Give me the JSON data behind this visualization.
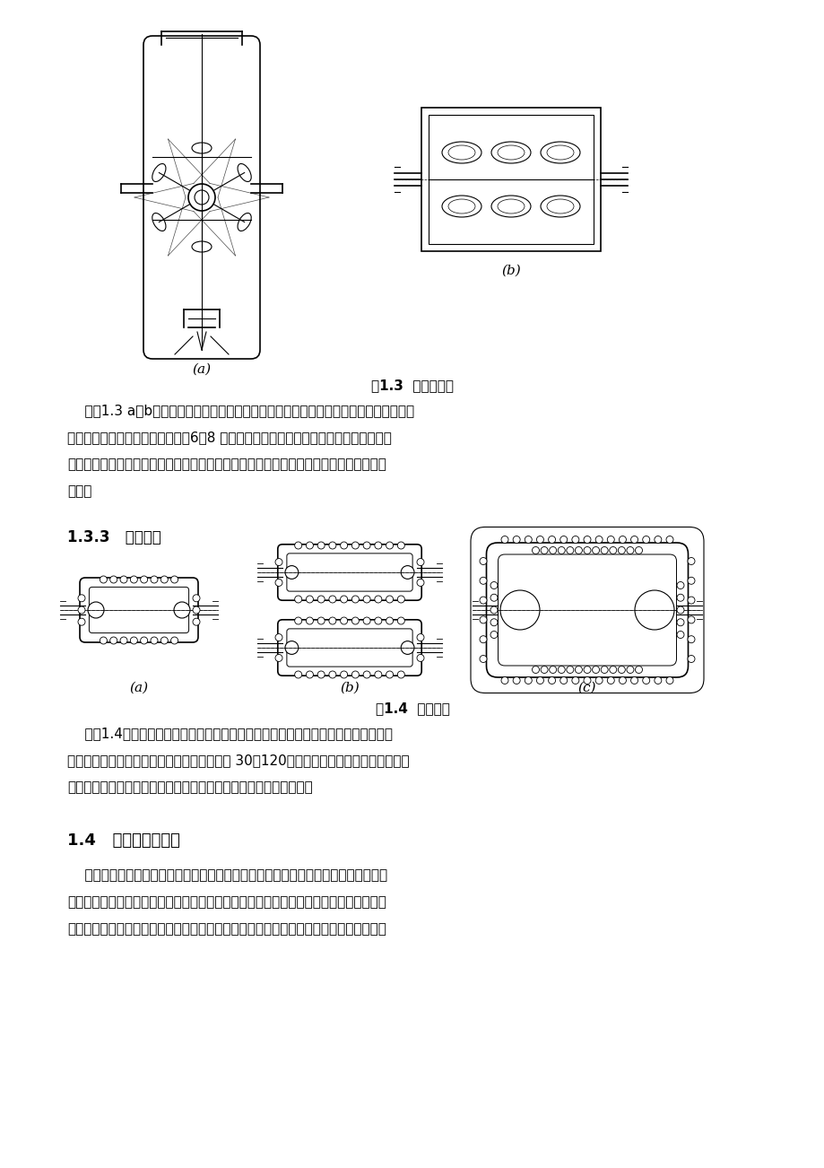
{
  "bg_color": "#ffffff",
  "text_color": "#000000",
  "fig_width": 9.2,
  "fig_height": 13.02,
  "fig_caption_1": "图1.3  转塔式刀库",
  "fig_caption_2": "图1.4  链式刀库",
  "label_a": "(a)",
  "label_b": "(b)",
  "label_c": "(c)",
  "section_133": "1.3.3   链式刀库",
  "section_14": "1.4   换刀装置的形式",
  "para1_line1": "    如图1.3 a、b所示。包括水平转塔头和垂直转塔头两种。所有刀具固定在同一转塔上，",
  "para1_line2": "无换刀臂，储刀数量有限，通常为6～8 把。一般仅用于轻便而简单的机型。常见于车削",
  "para1_line3": "中心和钻削中心。在钻削中心储刀位置即主轴，其外部结构紧凑但内部构造复杂，精度要",
  "para1_line4": "求高。",
  "para2_line1": "    如图1.4所示，包括单环链和多环链，链环形式可有多种变化，适用于刀库容量较大",
  "para2_line2": "的场合，所占的空间小。一般适用于刀具数在 30～120把。仅增加链条长度即可增加刀具",
  "para2_line3": "数，可以不增加圆周速度，其转动惯量不像盘式刀库增加的那样大。",
  "para3_line1": "    数控机床的自动换刀装置中，实现刀库与机床主轴之间传递和装卸刀具的装置称为换",
  "para3_line2": "刀装置。刀库换刀，按照换刀过程有无机械手参与，分成有机械手换刀和无机械手换刀两",
  "para3_line3": "种情况。有机械手的系统在刀库配置、与主轴的相对位置及刀具数量上都比较灵活，换刀"
}
